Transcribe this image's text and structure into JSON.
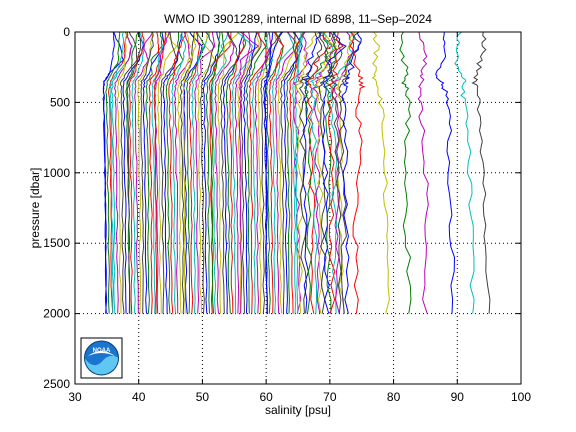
{
  "chart_data": {
    "type": "line",
    "title": "WMO ID 3901289, internal ID 6898, 11–Sep–2024",
    "xlabel": "salinity [psu]",
    "ylabel": "pressure [dbar]",
    "xlim": [
      30,
      100
    ],
    "ylim": [
      0,
      2500
    ],
    "y_reversed": true,
    "grid": "dotted",
    "xticks": [
      "30",
      "40",
      "50",
      "60",
      "70",
      "80",
      "90",
      "100"
    ],
    "yticks": [
      "0",
      "500",
      "1000",
      "1500",
      "2000",
      "2500"
    ],
    "profile_pressure": [
      0,
      100,
      200,
      300,
      350,
      400,
      500,
      700,
      1000,
      1300,
      1600,
      2000
    ],
    "series_note": "about 150 overlaid salinity profiles, each offset by a constant to the right; approximate salinity at the profile_pressure levels",
    "series": [
      {
        "values": [
          36.0,
          36.2,
          35.8,
          35.3,
          34.6,
          34.5,
          34.5,
          34.6,
          34.7,
          34.8,
          34.8,
          34.9
        ]
      },
      {
        "values": [
          37.5,
          37.6,
          37.2,
          36.4,
          35.7,
          35.6,
          35.6,
          35.7,
          35.8,
          35.8,
          35.9,
          35.9
        ]
      },
      {
        "values": [
          40.1,
          40.4,
          39.8,
          39.0,
          38.4,
          38.3,
          38.3,
          38.4,
          38.4,
          38.5,
          38.5,
          38.6
        ]
      },
      {
        "values": [
          44.3,
          44.0,
          43.7,
          43.0,
          42.6,
          42.5,
          42.5,
          42.6,
          42.6,
          42.7,
          42.7,
          42.8
        ]
      },
      {
        "values": [
          48.7,
          48.9,
          48.2,
          47.6,
          47.1,
          47.0,
          47.0,
          47.1,
          47.1,
          47.2,
          47.2,
          47.3
        ]
      },
      {
        "values": [
          52.8,
          52.5,
          52.4,
          51.9,
          51.5,
          51.4,
          51.4,
          51.5,
          51.5,
          51.6,
          51.6,
          51.7
        ]
      },
      {
        "values": [
          57.2,
          57.5,
          57.0,
          56.4,
          56.0,
          55.9,
          55.9,
          55.9,
          56.0,
          56.0,
          56.1,
          56.1
        ]
      },
      {
        "values": [
          61.0,
          60.8,
          60.6,
          60.3,
          60.0,
          59.9,
          59.9,
          60.0,
          60.0,
          60.1,
          60.1,
          60.2
        ]
      },
      {
        "values": [
          65.5,
          65.2,
          65.1,
          64.9,
          64.7,
          64.6,
          64.6,
          64.7,
          64.7,
          64.8,
          64.8,
          64.9
        ]
      },
      {
        "values": [
          68.6,
          68.9,
          69.6,
          70.4,
          70.6,
          70.8,
          70.7,
          71.0,
          71.2,
          71.4,
          71.5,
          71.6
        ]
      },
      {
        "values": [
          73.7,
          73.3,
          73.9,
          74.8,
          74.9,
          75.1,
          74.2,
          74.8,
          74.5,
          74.0,
          74.1,
          74.3
        ]
      },
      {
        "values": [
          77.0,
          77.4,
          77.2,
          76.8,
          77.3,
          77.8,
          78.0,
          78.4,
          78.6,
          78.9,
          79.0,
          79.1
        ]
      },
      {
        "values": [
          81.3,
          81.0,
          81.6,
          82.2,
          81.5,
          82.0,
          82.4,
          82.1,
          82.0,
          81.8,
          82.3,
          82.5
        ]
      },
      {
        "values": [
          84.2,
          84.6,
          85.0,
          84.6,
          84.3,
          83.9,
          84.1,
          84.6,
          85.0,
          85.3,
          85.1,
          84.9
        ]
      },
      {
        "values": [
          87.6,
          88.2,
          87.9,
          86.8,
          87.4,
          87.9,
          88.6,
          89.0,
          88.5,
          88.8,
          89.2,
          89.4
        ]
      },
      {
        "values": [
          90.4,
          90.0,
          89.8,
          90.5,
          91.0,
          90.7,
          91.2,
          91.6,
          91.9,
          92.1,
          92.3,
          92.5
        ]
      },
      {
        "values": [
          94.0,
          94.3,
          93.6,
          93.1,
          92.7,
          92.9,
          93.4,
          93.8,
          94.1,
          94.4,
          94.6,
          94.8
        ]
      }
    ],
    "colors": [
      "#0000ff",
      "#008000",
      "#ff0000",
      "#00bfbf",
      "#bf00bf",
      "#bfbf00",
      "#404040"
    ]
  }
}
